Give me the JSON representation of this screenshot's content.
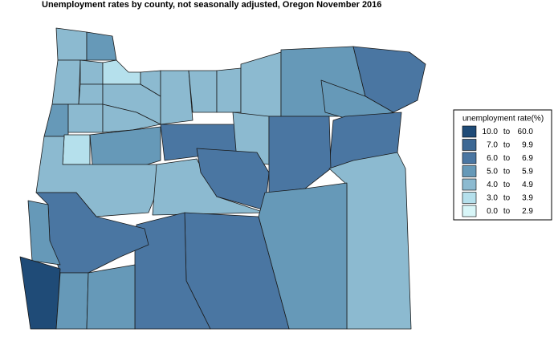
{
  "header": {
    "title": "Unemployment rates by county, not seasonally adjusted,  Oregon  November 2016"
  },
  "legend": {
    "title": "unemployment rate(%)",
    "separator": "to",
    "items": [
      {
        "low": "10.0",
        "high": "60.0",
        "color": "#1f4b77"
      },
      {
        "low": "7.0",
        "high": "9.9",
        "color": "#3d6894"
      },
      {
        "low": "6.0",
        "high": "6.9",
        "color": "#4a76a2"
      },
      {
        "low": "5.0",
        "high": "5.9",
        "color": "#6699b8"
      },
      {
        "low": "4.0",
        "high": "4.9",
        "color": "#8cbad0"
      },
      {
        "low": "3.0",
        "high": "3.9",
        "color": "#b5e0ec"
      },
      {
        "low": "0.0",
        "high": "2.9",
        "color": "#d8f6f8"
      }
    ]
  }
}
